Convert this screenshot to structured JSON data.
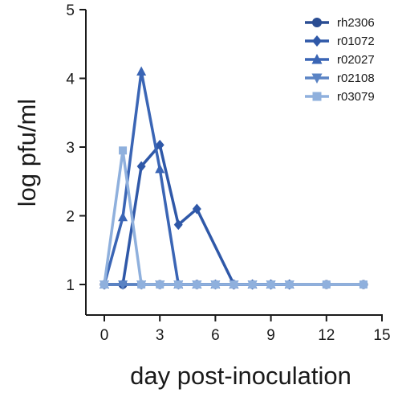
{
  "chart_data": {
    "type": "line",
    "xlabel": "day post-inoculation",
    "ylabel": "log pfu/ml",
    "xlim": [
      0,
      15
    ],
    "ylim": [
      1,
      5
    ],
    "xticks": [
      0,
      3,
      6,
      9,
      12,
      15
    ],
    "yticks": [
      1,
      2,
      3,
      4,
      5
    ],
    "grid": false,
    "legend_position": "top-right",
    "series": [
      {
        "name": "rh2306",
        "color": "#2a4d93",
        "marker": "circle",
        "x": [
          0,
          1,
          2,
          3,
          4,
          5,
          6,
          7,
          8,
          9,
          10,
          12,
          14
        ],
        "y": [
          1,
          1,
          1,
          1,
          1,
          1,
          1,
          1,
          1,
          1,
          1,
          1,
          1
        ]
      },
      {
        "name": "r01072",
        "color": "#2f58a8",
        "marker": "diamond",
        "x": [
          0,
          1,
          2,
          3,
          4,
          5,
          7,
          8,
          9,
          10
        ],
        "y": [
          1,
          1,
          2.72,
          3.03,
          1.87,
          2.1,
          1,
          1,
          1,
          1
        ]
      },
      {
        "name": "r02027",
        "color": "#3a65b5",
        "marker": "triangle-up",
        "x": [
          0,
          1,
          2,
          3,
          4,
          5,
          6,
          7,
          8,
          9,
          10
        ],
        "y": [
          1,
          1.98,
          4.1,
          2.68,
          1,
          1,
          1,
          1,
          1,
          1,
          1
        ]
      },
      {
        "name": "r02108",
        "color": "#5a83c4",
        "marker": "triangle-down",
        "x": [
          0,
          1,
          2,
          3,
          4,
          5,
          6,
          7,
          8,
          9,
          10
        ],
        "y": [
          1,
          1,
          1,
          1,
          1,
          1,
          1,
          1,
          1,
          1,
          1
        ]
      },
      {
        "name": "r03079",
        "color": "#8fb0dd",
        "marker": "square",
        "x": [
          0,
          1,
          2,
          3,
          4,
          5,
          6,
          7,
          8,
          9,
          10,
          12,
          14
        ],
        "y": [
          1,
          2.95,
          1,
          1,
          1,
          1,
          1,
          1,
          1,
          1,
          1,
          1,
          1
        ]
      }
    ]
  }
}
